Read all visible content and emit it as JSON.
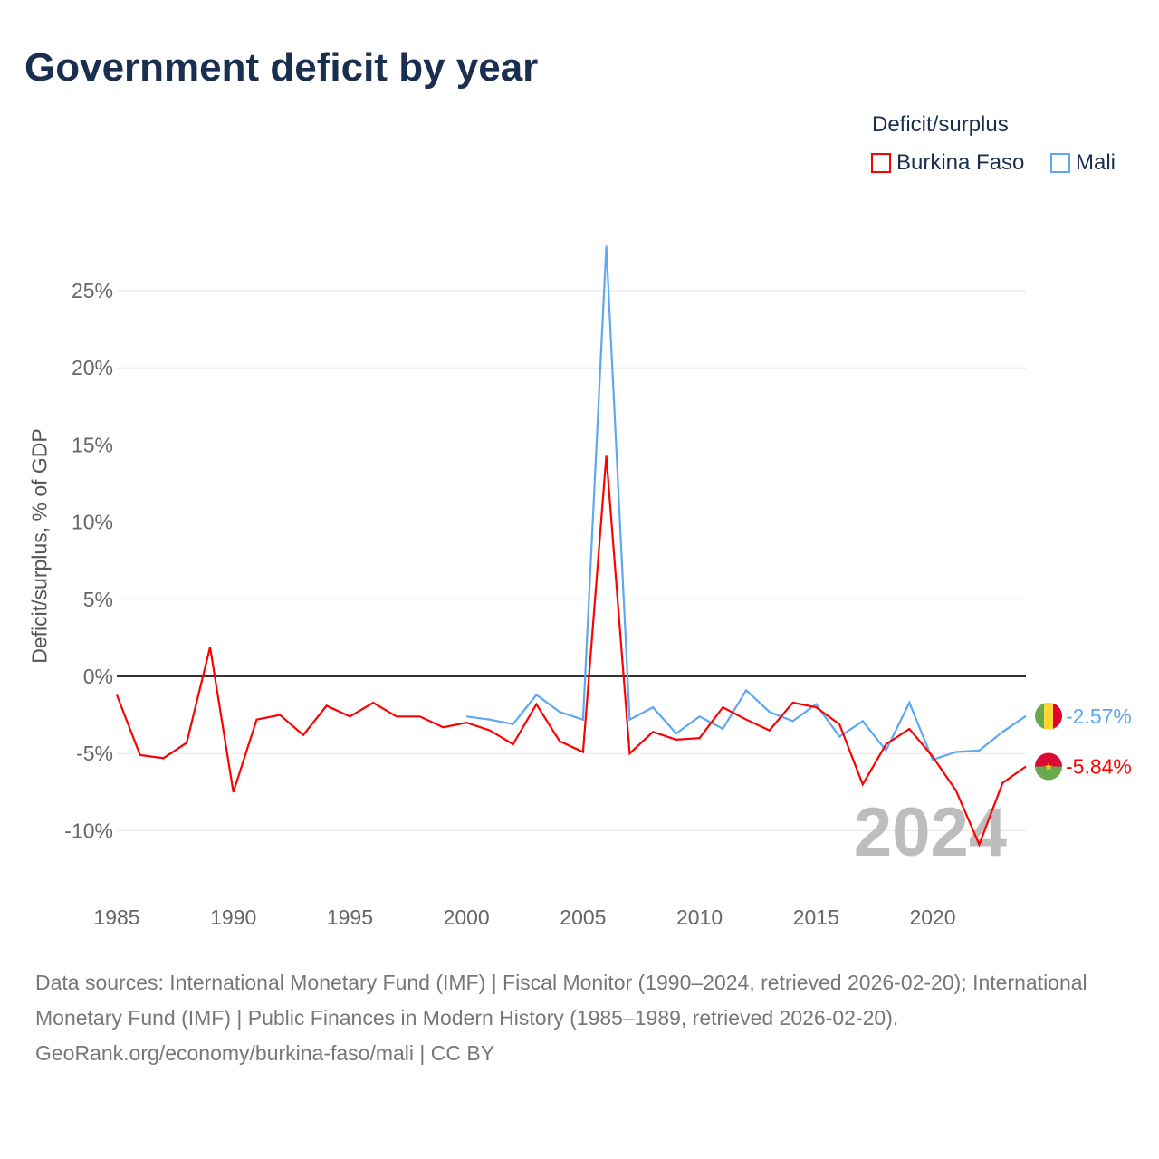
{
  "chart_data": {
    "type": "line",
    "title": "Government deficit by year",
    "xlabel": "",
    "ylabel": "Deficit/surplus, % of GDP",
    "xlim": [
      1985,
      2024
    ],
    "ylim": [
      -13,
      28
    ],
    "x_ticks": [
      "1985",
      "1990",
      "1995",
      "2000",
      "2005",
      "2010",
      "2015",
      "2020"
    ],
    "y_ticks": [
      {
        "v": 25,
        "label": "25%"
      },
      {
        "v": 20,
        "label": "20%"
      },
      {
        "v": 15,
        "label": "15%"
      },
      {
        "v": 10,
        "label": "10%"
      },
      {
        "v": 5,
        "label": "5%"
      },
      {
        "v": 0,
        "label": "0%"
      },
      {
        "v": -5,
        "label": "-5%"
      },
      {
        "v": -10,
        "label": "-10%"
      }
    ],
    "grid": true,
    "legend_title": "Deficit/surplus",
    "legend_position": "top-right",
    "watermark_year": "2024",
    "series": [
      {
        "name": "Burkina Faso",
        "color": "#ff0000",
        "end_label": "-5.84%",
        "start_year": 1985,
        "values": [
          -1.2,
          -5.1,
          -5.3,
          -4.3,
          1.9,
          -7.5,
          -2.8,
          -2.5,
          -3.8,
          -1.9,
          -2.6,
          -1.7,
          -2.6,
          -2.6,
          -3.3,
          -3.0,
          -3.5,
          -4.4,
          -1.8,
          -4.2,
          -4.9,
          14.3,
          -5.0,
          -3.6,
          -4.1,
          -4.0,
          -2.0,
          -2.8,
          -3.5,
          -1.7,
          -2.0,
          -3.1,
          -7.0,
          -4.4,
          -3.4,
          -5.2,
          -7.4,
          -10.9,
          -6.9,
          -5.84
        ]
      },
      {
        "name": "Mali",
        "color": "#5da8f0",
        "end_label": "-2.57%",
        "start_year": 2000,
        "values": [
          -2.6,
          -2.8,
          -3.1,
          -1.2,
          -2.3,
          -2.8,
          27.9,
          -2.8,
          -2.0,
          -3.7,
          -2.6,
          -3.4,
          -0.9,
          -2.3,
          -2.9,
          -1.8,
          -3.9,
          -2.9,
          -4.8,
          -1.7,
          -5.4,
          -4.9,
          -4.8,
          -3.6,
          -2.57
        ]
      }
    ]
  },
  "footer": {
    "line1": "Data sources: International Monetary Fund (IMF) | Fiscal Monitor (1990–2024, retrieved 2026-02-20); International Monetary Fund (IMF) | Public Finances in Modern History (1985–1989, retrieved 2026-02-20).",
    "line2": "GeoRank.org/economy/burkina-faso/mali | CC BY"
  }
}
